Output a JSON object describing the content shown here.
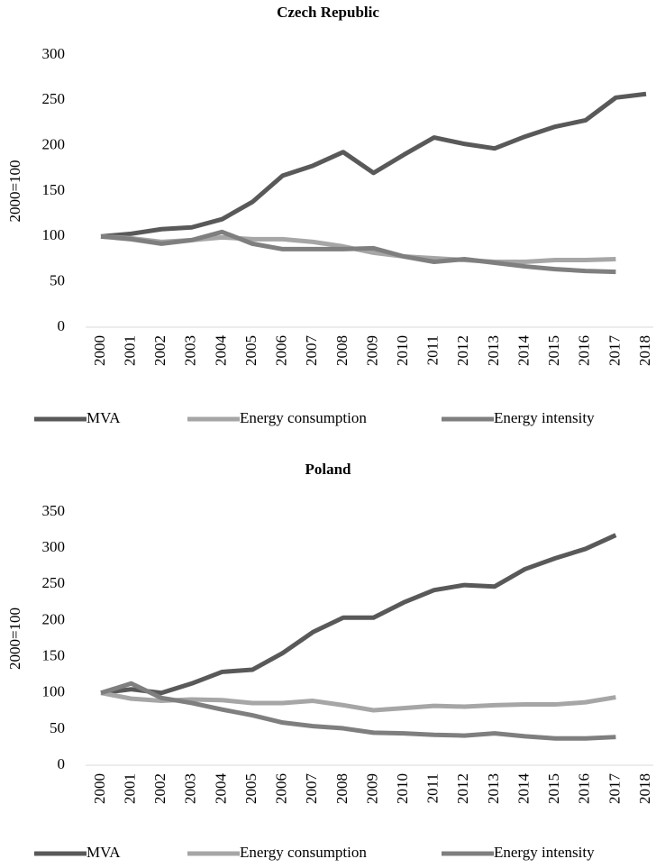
{
  "chart_data": [
    {
      "type": "line",
      "title": "Czech Republic",
      "y_label": "2000=100",
      "categories": [
        "2000",
        "2001",
        "2002",
        "2003",
        "2004",
        "2005",
        "2006",
        "2007",
        "2008",
        "2009",
        "2010",
        "2011",
        "2012",
        "2013",
        "2014",
        "2015",
        "2016",
        "2017",
        "2018"
      ],
      "series": [
        {
          "name": "MVA",
          "color": "#595959",
          "values": [
            100,
            103,
            108,
            110,
            119,
            138,
            167,
            178,
            193,
            170,
            190,
            209,
            202,
            197,
            210,
            221,
            228,
            253,
            257
          ]
        },
        {
          "name": "Energy consumption",
          "color": "#a6a6a6",
          "values": [
            100,
            98,
            94,
            96,
            99,
            97,
            97,
            94,
            89,
            82,
            78,
            76,
            74,
            72,
            72,
            74,
            74,
            75,
            null
          ]
        },
        {
          "name": "Energy intensity",
          "color": "#7f7f7f",
          "values": [
            100,
            97,
            92,
            96,
            105,
            92,
            86,
            86,
            86,
            87,
            78,
            72,
            75,
            71,
            67,
            64,
            62,
            61,
            null
          ]
        }
      ],
      "ylim": [
        0,
        300
      ],
      "yticks": [
        0,
        50,
        100,
        150,
        200,
        250,
        300
      ],
      "grid": false,
      "legend": "bottom"
    },
    {
      "type": "line",
      "title": "Poland",
      "y_label": "2000=100",
      "categories": [
        "2000",
        "2001",
        "2002",
        "2003",
        "2004",
        "2005",
        "2006",
        "2007",
        "2008",
        "2009",
        "2010",
        "2011",
        "2012",
        "2013",
        "2014",
        "2015",
        "2016",
        "2017",
        "2018"
      ],
      "series": [
        {
          "name": "MVA",
          "color": "#595959",
          "values": [
            100,
            105,
            100,
            113,
            129,
            132,
            155,
            184,
            204,
            204,
            225,
            242,
            249,
            247,
            271,
            286,
            299,
            318,
            null
          ]
        },
        {
          "name": "Energy consumption",
          "color": "#a6a6a6",
          "values": [
            100,
            92,
            89,
            91,
            90,
            86,
            86,
            89,
            83,
            76,
            79,
            82,
            81,
            83,
            84,
            84,
            87,
            94,
            null
          ]
        },
        {
          "name": "Energy intensity",
          "color": "#7f7f7f",
          "values": [
            100,
            113,
            93,
            86,
            77,
            69,
            59,
            54,
            51,
            45,
            44,
            42,
            41,
            44,
            40,
            37,
            37,
            39,
            null
          ]
        }
      ],
      "ylim": [
        0,
        350
      ],
      "yticks": [
        0,
        50,
        100,
        150,
        200,
        250,
        300,
        350
      ],
      "grid": false,
      "legend": "bottom"
    }
  ]
}
